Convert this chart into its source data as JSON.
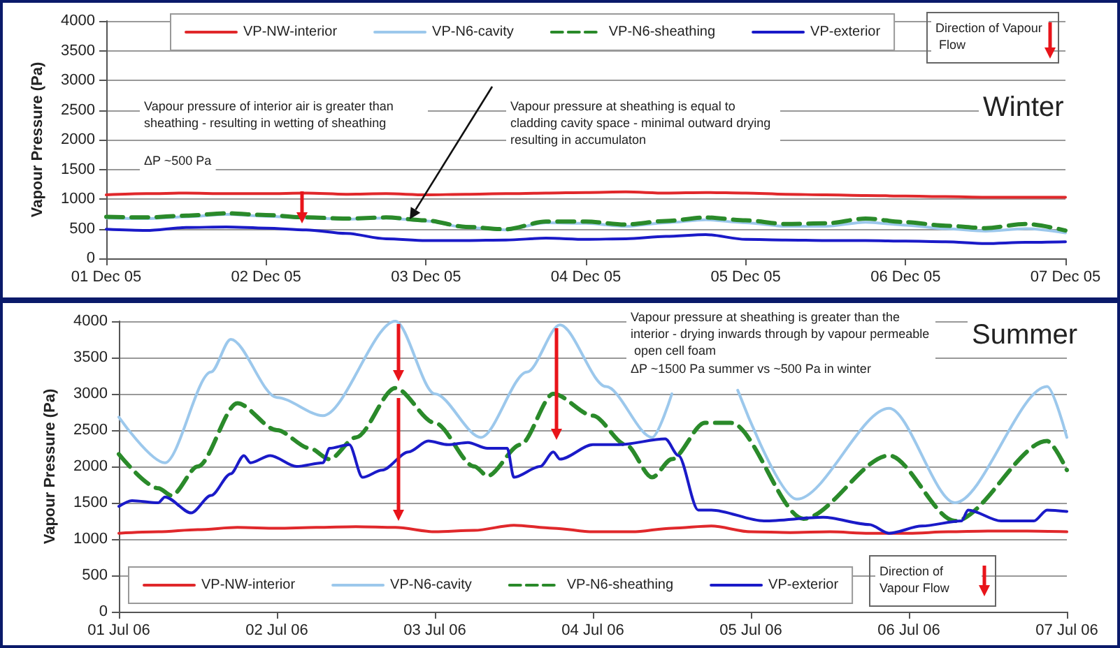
{
  "chart_data": [
    {
      "type": "line",
      "ylabel": "Vapour Pressure (Pa)",
      "xlim": [
        "--12-01",
        "--12-07"
      ],
      "xticks": [
        {
          "value": "--12-01",
          "label": "01 Dec 05"
        },
        {
          "value": "--12-02",
          "label": "02 Dec 05"
        },
        {
          "value": "--12-03",
          "label": "03 Dec 05"
        },
        {
          "value": "--12-04",
          "label": "04 Dec 05"
        },
        {
          "value": "--12-05",
          "label": "05 Dec 05"
        },
        {
          "value": "--12-06",
          "label": "06 Dec 05"
        },
        {
          "value": "--12-07",
          "label": "07 Dec 05"
        }
      ],
      "ylim": [
        0,
        4000
      ],
      "yticks": [
        0,
        500,
        1000,
        1500,
        2000,
        2500,
        3000,
        3500,
        4000
      ],
      "grid": "y",
      "legend": "top",
      "marker": "none",
      "annotations": [
        "Vapour pressure of interior air is greater than sheathing - resulting in wetting of sheathing",
        "ΔP ~500 Pa",
        "Vapour pressure at sheathing is equal to cladding cavity space - minimal outward drying resulting in accumulaton",
        "Winter",
        "Direction of Vapour Flow"
      ],
      "x": [
        "--12-01T00:00",
        "--12-01T06:00",
        "--12-01T12:00",
        "--12-01T18:00",
        "--12-02T00:00",
        "--12-02T06:00",
        "--12-02T12:00",
        "--12-02T18:00",
        "--12-03T00:00",
        "--12-03T06:00",
        "--12-03T12:00",
        "--12-03T18:00",
        "--12-04T00:00",
        "--12-04T06:00",
        "--12-04T12:00",
        "--12-04T18:00",
        "--12-05T00:00",
        "--12-05T06:00",
        "--12-05T12:00",
        "--12-05T18:00",
        "--12-06T00:00",
        "--12-06T06:00",
        "--12-06T12:00",
        "--12-06T18:00",
        "--12-07T00:00"
      ],
      "series": [
        {
          "name": "VP-NW-interior",
          "color": "#e0282b",
          "values": [
            1070,
            1090,
            1100,
            1090,
            1090,
            1100,
            1080,
            1090,
            1070,
            1080,
            1090,
            1100,
            1110,
            1120,
            1100,
            1110,
            1100,
            1080,
            1070,
            1060,
            1050,
            1040,
            1030,
            1030,
            1030
          ]
        },
        {
          "name": "VP-N6-cavity",
          "color": "#9cc8ec",
          "values": [
            680,
            670,
            700,
            740,
            710,
            680,
            660,
            680,
            630,
            520,
            480,
            600,
            590,
            540,
            600,
            650,
            600,
            540,
            540,
            610,
            560,
            500,
            460,
            500,
            430
          ]
        },
        {
          "name": "VP-N6-sheathing",
          "color": "#2a8a2a",
          "line_style": "dashed",
          "values": [
            700,
            690,
            720,
            760,
            730,
            690,
            670,
            690,
            640,
            530,
            490,
            620,
            620,
            570,
            630,
            690,
            640,
            580,
            590,
            670,
            610,
            550,
            510,
            580,
            470
          ]
        },
        {
          "name": "VP-exterior",
          "color": "#1a1ac8",
          "values": [
            490,
            470,
            520,
            530,
            510,
            480,
            420,
            330,
            300,
            300,
            310,
            340,
            320,
            330,
            370,
            400,
            320,
            310,
            300,
            300,
            290,
            280,
            250,
            270,
            280
          ]
        }
      ]
    },
    {
      "type": "line",
      "ylabel": "Vapour Pressure (Pa)",
      "xlim": [
        "--07-01",
        "--07-07"
      ],
      "xticks": [
        {
          "value": "--07-01",
          "label": "01 Jul 06"
        },
        {
          "value": "--07-02",
          "label": "02 Jul 06"
        },
        {
          "value": "--07-03",
          "label": "03 Jul 06"
        },
        {
          "value": "--07-04",
          "label": "04 Jul 06"
        },
        {
          "value": "--07-05",
          "label": "05 Jul 06"
        },
        {
          "value": "--07-06",
          "label": "06 Jul 06"
        },
        {
          "value": "--07-07",
          "label": "07 Jul 06"
        }
      ],
      "ylim": [
        0,
        4000
      ],
      "yticks": [
        0,
        500,
        1000,
        1500,
        2000,
        2500,
        3000,
        3500,
        4000
      ],
      "grid": "y",
      "legend": "bottom",
      "marker": "none",
      "annotations": [
        "Vapour pressure at sheathing is greater than the interior - drying inwards through by vapour permeable open cell foam",
        "ΔP ~1500 Pa summer vs ~500 Pa in winter",
        "Summer",
        "Direction of Vapour Flow"
      ],
      "series": [
        {
          "name": "VP-NW-interior",
          "color": "#e0282b",
          "x": [
            "--07-01T00:00",
            "--07-01T06:00",
            "--07-01T12:00",
            "--07-01T18:00",
            "--07-02T00:00",
            "--07-02T06:00",
            "--07-02T12:00",
            "--07-02T18:00",
            "--07-03T00:00",
            "--07-03T06:00",
            "--07-03T12:00",
            "--07-03T18:00",
            "--07-04T00:00",
            "--07-04T06:00",
            "--07-04T12:00",
            "--07-04T18:00",
            "--07-05T00:00",
            "--07-05T06:00",
            "--07-05T12:00",
            "--07-05T18:00",
            "--07-06T00:00",
            "--07-06T06:00",
            "--07-06T12:00",
            "--07-06T18:00",
            "--07-07T00:00"
          ],
          "values": [
            1080,
            1100,
            1130,
            1160,
            1150,
            1160,
            1170,
            1160,
            1100,
            1120,
            1190,
            1150,
            1100,
            1100,
            1150,
            1180,
            1100,
            1090,
            1100,
            1080,
            1080,
            1100,
            1110,
            1110,
            1100
          ]
        },
        {
          "name": "VP-N6-cavity",
          "color": "#9cc8ec",
          "x": [
            "--07-01T00:00",
            "--07-01T07:00",
            "--07-01T14:00",
            "--07-01T17:00",
            "--07-02T00:00",
            "--07-02T07:00",
            "--07-02T18:00",
            "--07-03T00:00",
            "--07-03T07:00",
            "--07-03T14:00",
            "--07-03T19:00",
            "--07-04T02:00",
            "--07-04T09:00",
            "--07-04T12:00",
            "--07-04T17:00",
            "--07-04T22:00",
            "--07-05T07:00",
            "--07-05T21:00",
            "--07-06T07:00",
            "--07-06T21:00",
            "--07-07T00:00"
          ],
          "values": [
            2680,
            2050,
            3300,
            3750,
            2950,
            2700,
            4000,
            3000,
            2400,
            3300,
            3950,
            3100,
            2400,
            3000,
            null,
            3050,
            1550,
            2800,
            1500,
            3100,
            2400
          ]
        },
        {
          "name": "VP-N6-sheathing",
          "color": "#2a8a2a",
          "line_style": "dashed",
          "x": [
            "--07-01T00:00",
            "--07-01T06:00",
            "--07-01T08:00",
            "--07-01T12:00",
            "--07-01T18:00",
            "--07-02T00:00",
            "--07-02T05:00",
            "--07-02T08:00",
            "--07-02T12:00",
            "--07-02T18:00",
            "--07-03T00:00",
            "--07-03T06:00",
            "--07-03T08:00",
            "--07-03T13:00",
            "--07-03T18:00",
            "--07-04T00:00",
            "--07-04T05:00",
            "--07-04T09:00",
            "--07-04T12:00",
            "--07-04T17:00",
            "--07-04T21:00",
            "--07-05T08:00",
            "--07-05T21:00",
            "--07-06T07:00",
            "--07-06T21:00",
            "--07-07T00:00"
          ],
          "values": [
            2170,
            1700,
            1600,
            2000,
            2870,
            2500,
            2250,
            2100,
            2400,
            3080,
            2600,
            2000,
            1870,
            2300,
            3000,
            2700,
            2300,
            1850,
            2100,
            2600,
            2600,
            1280,
            2150,
            1250,
            2350,
            1950
          ]
        },
        {
          "name": "VP-exterior",
          "color": "#1a1ac8",
          "x": [
            "--07-01T00:00",
            "--07-01T02:00",
            "--07-01T06:00",
            "--07-01T07:00",
            "--07-01T11:00",
            "--07-01T14:00",
            "--07-01T17:00",
            "--07-01T19:00",
            "--07-01T20:00",
            "--07-01T23:00",
            "--07-02T03:00",
            "--07-02T07:00",
            "--07-02T08:00",
            "--07-02T11:00",
            "--07-02T13:00",
            "--07-02T16:00",
            "--07-02T20:00",
            "--07-02T23:00",
            "--07-03T02:00",
            "--07-03T05:00",
            "--07-03T08:00",
            "--07-03T11:00",
            "--07-03T12:00",
            "--07-03T16:00",
            "--07-03T18:00",
            "--07-03T19:00",
            "--07-04T00:00",
            "--07-04T04:00",
            "--07-04T11:00",
            "--07-04T13:00",
            "--07-04T16:00",
            "--07-04T18:00",
            "--07-05T02:00",
            "--07-05T11:00",
            "--07-05T18:00",
            "--07-05T21:00",
            "--07-06T02:00",
            "--07-06T08:00",
            "--07-06T09:00",
            "--07-06T14:00",
            "--07-06T19:00",
            "--07-06T21:00",
            "--07-07T00:00"
          ],
          "values": [
            1450,
            1530,
            1500,
            1580,
            1360,
            1600,
            1900,
            2150,
            2050,
            2150,
            2000,
            2050,
            2250,
            2300,
            1850,
            1950,
            2200,
            2350,
            2300,
            2330,
            2250,
            2250,
            1850,
            2000,
            2200,
            2100,
            2300,
            2300,
            2380,
            2150,
            1400,
            1400,
            1250,
            1300,
            1200,
            1080,
            1180,
            1250,
            1400,
            1250,
            1250,
            1400,
            1380
          ]
        }
      ]
    }
  ]
}
